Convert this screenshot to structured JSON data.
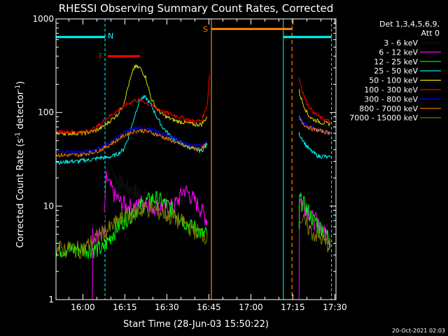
{
  "chart_data": {
    "type": "line",
    "title": "RHESSI Observing Summary Count Rates, Corrected",
    "xlabel": "Start Time (28-Jun-03 15:50:22)",
    "ylabel": "Corrected Count Rate (s",
    "ylabel_sup1": "-1",
    "ylabel_mid": " detector",
    "ylabel_sup2": "-1",
    "ylabel_end": ")",
    "x_unit": "minutes after 15:50:22",
    "xlim": [
      0,
      100
    ],
    "ylim": [
      1,
      1000
    ],
    "yscale": "log",
    "x_ticks": [
      {
        "v": 9.6,
        "label": "16:00"
      },
      {
        "v": 24.6,
        "label": "16:15"
      },
      {
        "v": 39.6,
        "label": "16:30"
      },
      {
        "v": 54.6,
        "label": "16:45"
      },
      {
        "v": 69.6,
        "label": "17:00"
      },
      {
        "v": 84.6,
        "label": "17:15"
      },
      {
        "v": 99.6,
        "label": "17:30"
      }
    ],
    "y_ticks": [
      {
        "v": 1,
        "label": "1"
      },
      {
        "v": 10,
        "label": "10"
      },
      {
        "v": 100,
        "label": "100"
      },
      {
        "v": 1000,
        "label": "1000"
      }
    ],
    "legend": {
      "header1": "Det 1,3,4,5,6,9,",
      "header2": "Att 0",
      "position": "right"
    },
    "series": [
      {
        "name": "3 - 6 keV",
        "color": "#000000",
        "segments": [
          {
            "x": [
              17.2,
              18,
              19,
              20,
              21,
              22,
              23,
              24,
              25,
              26,
              27,
              28,
              29,
              30,
              31,
              32,
              33,
              34,
              35,
              36,
              37,
              38,
              39,
              40,
              41,
              42,
              43,
              44,
              45,
              46,
              47,
              48,
              49,
              50,
              51,
              52,
              53,
              54
            ],
            "y": [
              5,
              34,
              28,
              24,
              21,
              19,
              18,
              17,
              16,
              16,
              15,
              15,
              14,
              14,
              13,
              13,
              12,
              12,
              12,
              11,
              11,
              11,
              11,
              11,
              10,
              10,
              10,
              10,
              12,
              14,
              14,
              13,
              12,
              11,
              10,
              10,
              9,
              9
            ]
          }
        ]
      },
      {
        "name": "6 - 12 keV",
        "color": "#ff00ff",
        "segments": [
          {
            "x": [
              13,
              13.1,
              14,
              15,
              16,
              17,
              17.2
            ],
            "y": [
              1,
              5,
              5,
              5,
              5,
              5,
              5
            ]
          },
          {
            "x": [
              17.2,
              18,
              19,
              20,
              21,
              22,
              23,
              24,
              25,
              26,
              27,
              28,
              29,
              30,
              31,
              32,
              33,
              34,
              35,
              36,
              37,
              38,
              39,
              40,
              41,
              42,
              43,
              44,
              45,
              46,
              47,
              48,
              49,
              50,
              51,
              52,
              53,
              54
            ],
            "y": [
              8,
              20,
              17,
              15,
              13,
              12,
              11,
              11,
              10,
              10,
              10,
              10,
              10,
              11,
              11,
              11,
              11,
              10,
              10,
              10,
              10,
              10,
              10,
              10,
              10,
              10,
              11,
              12,
              14,
              15,
              14,
              13,
              12,
              11,
              10,
              9,
              8,
              7
            ]
          },
          {
            "x": [
              86.8,
              87,
              88,
              89,
              90,
              91,
              92,
              93,
              94,
              95,
              96,
              97,
              98
            ],
            "y": [
              1,
              12,
              11,
              10,
              9,
              8,
              7,
              7,
              6,
              6,
              5,
              5,
              4
            ]
          }
        ]
      },
      {
        "name": "12 - 25 keV",
        "color": "#00ff00",
        "segments": [
          {
            "x": [
              0,
              5,
              10,
              12,
              13,
              14,
              15,
              16,
              17
            ],
            "y": [
              3.5,
              3.5,
              3.5,
              3.5,
              3.5,
              3.5,
              3.5,
              3.5,
              3.5
            ]
          },
          {
            "x": [
              17,
              18,
              20,
              22,
              24,
              26,
              28,
              30,
              32,
              34,
              36,
              38,
              40,
              42,
              44,
              46,
              48,
              50,
              52,
              54
            ],
            "y": [
              3.5,
              4,
              5,
              6,
              7,
              8,
              9,
              10,
              11,
              12,
              12,
              11,
              10,
              9,
              8,
              7,
              6,
              6,
              5,
              5
            ]
          },
          {
            "x": [
              86.8,
              87,
              88,
              89,
              90,
              91,
              92,
              93,
              94,
              95,
              96,
              97,
              98
            ],
            "y": [
              6,
              12,
              11,
              10,
              9,
              8,
              7,
              7,
              6,
              6,
              5,
              5,
              4
            ]
          }
        ]
      },
      {
        "name": "25 - 50 keV",
        "color": "#00ffff",
        "segments": [
          {
            "x": [
              0,
              2,
              4,
              6,
              8,
              10,
              12,
              14,
              16,
              18,
              20,
              22,
              24,
              26,
              28,
              30,
              32,
              34,
              36,
              38,
              40,
              42,
              44,
              46,
              48,
              50,
              52,
              54
            ],
            "y": [
              30,
              29,
              30,
              30,
              30,
              31,
              31,
              32,
              33,
              33,
              34,
              36,
              40,
              55,
              90,
              140,
              145,
              120,
              90,
              70,
              60,
              52,
              48,
              44,
              42,
              40,
              39,
              45
            ]
          },
          {
            "x": [
              86.8,
              87,
              88,
              89,
              90,
              91,
              92,
              93,
              94,
              95,
              96,
              97,
              98
            ],
            "y": [
              60,
              58,
              52,
              46,
              42,
              39,
              37,
              35,
              34,
              34,
              34,
              33,
              33
            ]
          }
        ]
      },
      {
        "name": "50 - 100 keV",
        "color": "#dddd00",
        "segments": [
          {
            "x": [
              0,
              2,
              4,
              6,
              8,
              10,
              12,
              14,
              16,
              18,
              20,
              22,
              24,
              26,
              28,
              30,
              32,
              34,
              36,
              38,
              40,
              42,
              44,
              46,
              48,
              50,
              52,
              54
            ],
            "y": [
              60,
              60,
              60,
              60,
              60,
              60,
              62,
              64,
              68,
              75,
              85,
              95,
              120,
              200,
              310,
              300,
              240,
              140,
              110,
              95,
              88,
              83,
              80,
              78,
              76,
              74,
              75,
              90
            ]
          },
          {
            "x": [
              86.8,
              87,
              88,
              89,
              90,
              91,
              92,
              93,
              94,
              95,
              96,
              97,
              98
            ],
            "y": [
              180,
              160,
              130,
              110,
              95,
              88,
              84,
              82,
              80,
              78,
              77,
              76,
              76
            ]
          }
        ]
      },
      {
        "name": "100 - 300 keV",
        "color": "#ff0000",
        "segments": [
          {
            "x": [
              0,
              2,
              4,
              6,
              8,
              10,
              12,
              14,
              16,
              18,
              20,
              22,
              24,
              26,
              28,
              30,
              32,
              34,
              36,
              38,
              40,
              42,
              44,
              46,
              48,
              50,
              52,
              54,
              54.8
            ],
            "y": [
              62,
              62,
              62,
              62,
              62,
              62,
              64,
              68,
              76,
              86,
              95,
              104,
              115,
              125,
              135,
              135,
              128,
              118,
              110,
              104,
              98,
              94,
              90,
              86,
              82,
              80,
              82,
              120,
              250
            ]
          },
          {
            "x": [
              86.8,
              87,
              88,
              89,
              90,
              91,
              92,
              93,
              94,
              95,
              96,
              97,
              98
            ],
            "y": [
              240,
              220,
              170,
              140,
              120,
              110,
              100,
              95,
              90,
              86,
              84,
              82,
              80
            ]
          }
        ]
      },
      {
        "name": "300 - 800 keV",
        "color": "#0000ff",
        "segments": [
          {
            "x": [
              0,
              2,
              4,
              6,
              8,
              10,
              12,
              14,
              16,
              18,
              20,
              22,
              24,
              26,
              28,
              30,
              32,
              34,
              36,
              38,
              40,
              42,
              44,
              46,
              48,
              50,
              52,
              54
            ],
            "y": [
              38,
              38,
              38,
              38,
              38,
              38,
              39,
              40,
              42,
              45,
              50,
              55,
              60,
              64,
              67,
              68,
              67,
              65,
              62,
              59,
              56,
              53,
              50,
              47,
              45,
              44,
              44,
              50
            ]
          },
          {
            "x": [
              86.8,
              87,
              88,
              89,
              90,
              91,
              92,
              93,
              94,
              95,
              96,
              97,
              98
            ],
            "y": [
              95,
              90,
              82,
              76,
              72,
              70,
              68,
              66,
              65,
              64,
              63,
              62,
              62
            ]
          }
        ]
      },
      {
        "name": "800 - 7000 keV",
        "color": "#ff8000",
        "segments": [
          {
            "x": [
              0,
              2,
              4,
              6,
              8,
              10,
              12,
              14,
              16,
              18,
              20,
              22,
              24,
              26,
              28,
              30,
              32,
              34,
              36,
              38,
              40,
              42,
              44,
              46,
              48,
              50,
              52,
              54
            ],
            "y": [
              35,
              35,
              35,
              35,
              35,
              36,
              37,
              38,
              40,
              43,
              47,
              51,
              56,
              60,
              63,
              64,
              63,
              61,
              58,
              55,
              52,
              49,
              46,
              44,
              42,
              41,
              41,
              46
            ]
          },
          {
            "x": [
              86.8,
              87,
              88,
              89,
              90,
              91,
              92,
              93,
              94,
              95,
              96,
              97,
              98
            ],
            "y": [
              90,
              85,
              78,
              73,
              70,
              68,
              66,
              65,
              64,
              63,
              62,
              61,
              61
            ]
          }
        ]
      },
      {
        "name": "7000 - 15000 keV",
        "color": "#808000",
        "segments": [
          {
            "x": [
              0,
              2,
              4,
              6,
              8,
              10,
              12,
              14,
              16,
              18,
              20,
              22,
              24,
              26,
              28,
              30,
              32,
              34,
              36,
              38,
              40,
              42,
              44,
              46,
              48,
              50,
              52,
              54
            ],
            "y": [
              3.5,
              3.5,
              3.5,
              3.5,
              3.5,
              3.5,
              4,
              4.5,
              5,
              5.5,
              6,
              7,
              7.5,
              8,
              8.5,
              9,
              9.5,
              9.5,
              9,
              8.5,
              8,
              7.5,
              7,
              6.5,
              6,
              5.5,
              5,
              5
            ]
          },
          {
            "x": [
              86.8,
              87,
              88,
              89,
              90,
              91,
              92,
              93,
              94,
              95,
              96,
              97,
              98
            ],
            "y": [
              8,
              7.5,
              7,
              6.5,
              6,
              5.5,
              5,
              5,
              4.5,
              4.5,
              4,
              4,
              3.8
            ]
          }
        ]
      }
    ],
    "annotations": {
      "night": {
        "label": "N",
        "color": "#00ffff",
        "y": 640,
        "bars": [
          [
            0,
            17.5
          ],
          [
            81.2,
            98.4
          ]
        ],
        "boundaries": [
          17.5,
          81.2,
          98.4
        ]
      },
      "flare": {
        "label": "F",
        "color": "#ff0000",
        "y": 400,
        "bars": [
          [
            18.5,
            30
          ]
        ]
      },
      "saa": {
        "label": "S",
        "color": "#ff8000",
        "y": 780,
        "bars": [
          [
            55.5,
            84.3
          ]
        ],
        "boundaries": [
          55.5,
          84.3
        ]
      }
    }
  },
  "timestamp": "20-Oct-2021 02:03"
}
